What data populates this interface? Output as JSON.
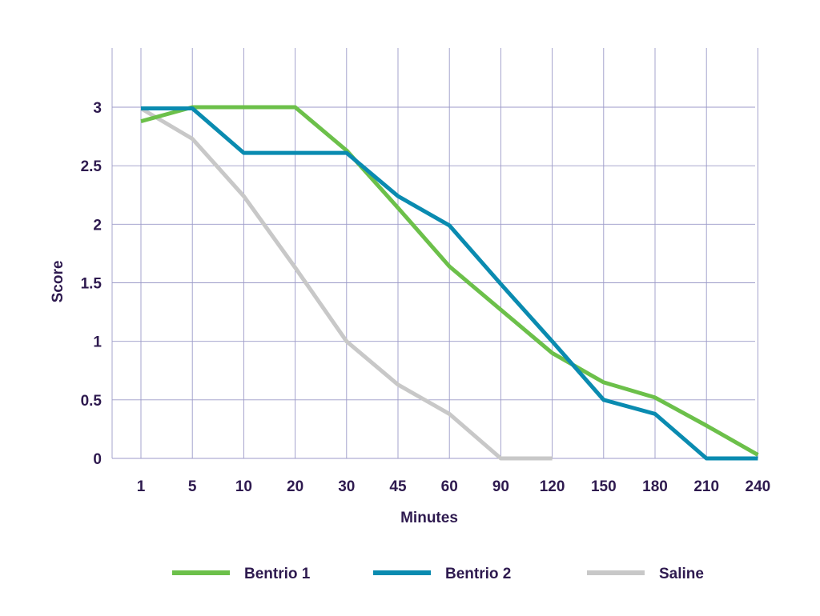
{
  "chart_data": {
    "type": "line",
    "title": "",
    "xlabel": "Minutes",
    "ylabel": "Score",
    "categories": [
      "1",
      "5",
      "10",
      "20",
      "30",
      "45",
      "60",
      "90",
      "120",
      "150",
      "180",
      "210",
      "240"
    ],
    "ylim": [
      0,
      3
    ],
    "yticks": [
      "0",
      "0.5",
      "1",
      "1.5",
      "2",
      "2.5",
      "3"
    ],
    "grid": true,
    "legend_position": "bottom",
    "series": [
      {
        "name": "Bentrio 1",
        "color": "#6cc04a",
        "values": [
          2.88,
          3.0,
          3.0,
          3.0,
          2.63,
          2.14,
          1.64,
          1.27,
          0.9,
          0.65,
          0.52,
          0.28,
          0.03
        ]
      },
      {
        "name": "Bentrio 2",
        "color": "#0a8bb0",
        "values": [
          2.99,
          2.99,
          2.61,
          2.61,
          2.61,
          2.24,
          1.99,
          1.49,
          1.0,
          0.5,
          0.38,
          0.0,
          0.0
        ]
      },
      {
        "name": "Saline",
        "color": "#c8c8c8",
        "values": [
          2.99,
          2.73,
          2.24,
          1.63,
          1.0,
          0.63,
          0.38,
          0.0,
          0.0,
          null,
          null,
          null,
          null
        ]
      }
    ],
    "colors": {
      "grid": "#9c9ac8",
      "text": "#2e1a4f"
    }
  }
}
